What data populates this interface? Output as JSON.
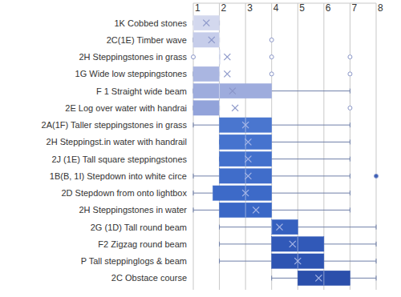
{
  "chart_data": {
    "type": "boxplot",
    "orientation": "horizontal",
    "grid": true,
    "categories": [
      "1K Cobbed stones",
      "2C(1E)  Timber wave",
      "2H  Steppingstones in grass",
      "1G  Wide low steppingstones",
      "F 1 Straight wide beam",
      "2E  Log over water with handrai",
      "2A(1F) Taller steppingstones in grass",
      "2H  Steppingst.in water with handrail",
      "2J (1E)  Tall square steppingstones",
      "1B(B, 1I) Stepdown into white circe",
      "2D  Stepdown from onto lightbox",
      "2H  Steppingstones in water",
      "2G (1D) Tall round beam",
      "F2  Zigzag round beam",
      "P  Tall steppinglogs & beam",
      "2C  Obstace course"
    ],
    "boxes": [
      {
        "min": 1,
        "q1": 1,
        "median": 1,
        "q3": 2,
        "max": 2,
        "mean": 1.5,
        "outliers": []
      },
      {
        "min": 1,
        "q1": 1,
        "median": 2,
        "q3": 2,
        "max": 2,
        "mean": 1.7,
        "outliers": [
          4
        ]
      },
      {
        "min": 2,
        "q1": 2,
        "median": 2,
        "q3": 2,
        "max": 2,
        "mean": 2.3,
        "outliers": [
          1,
          4,
          7
        ]
      },
      {
        "min": 1,
        "q1": 1,
        "median": 2,
        "q3": 2,
        "max": 2,
        "mean": 2.3,
        "outliers": [
          4,
          7
        ]
      },
      {
        "min": 1,
        "q1": 1,
        "median": 2,
        "q3": 4,
        "max": 7,
        "mean": 2.5,
        "outliers": []
      },
      {
        "min": 1,
        "q1": 1,
        "median": 2,
        "q3": 2,
        "max": 2,
        "mean": 2.6,
        "outliers": [
          7
        ]
      },
      {
        "min": 1,
        "q1": 2,
        "median": 3,
        "q3": 4,
        "max": 7,
        "mean": 3.0,
        "outliers": []
      },
      {
        "min": 2,
        "q1": 2,
        "median": 3,
        "q3": 4,
        "max": 7,
        "mean": 3.1,
        "outliers": []
      },
      {
        "min": 2,
        "q1": 2,
        "median": 3,
        "q3": 4,
        "max": 7,
        "mean": 3.1,
        "outliers": []
      },
      {
        "min": 1,
        "q1": 2,
        "median": 3,
        "q3": 4,
        "max": 7,
        "mean": 3.1,
        "outliers": [
          8
        ]
      },
      {
        "min": 1,
        "q1": 1.75,
        "median": 3,
        "q3": 4,
        "max": 7,
        "mean": 3.0,
        "outliers": []
      },
      {
        "min": 1,
        "q1": 2,
        "median": 3,
        "q3": 4,
        "max": 7,
        "mean": 3.4,
        "outliers": []
      },
      {
        "min": 2,
        "q1": 4,
        "median": 4,
        "q3": 5,
        "max": 8,
        "mean": 4.3,
        "outliers": []
      },
      {
        "min": 2,
        "q1": 4,
        "median": 5,
        "q3": 6,
        "max": 8,
        "mean": 4.8,
        "outliers": []
      },
      {
        "min": 2,
        "q1": 4,
        "median": 5,
        "q3": 6,
        "max": 8,
        "mean": 5.0,
        "outliers": []
      },
      {
        "min": 4,
        "q1": 5,
        "median": 6,
        "q3": 7,
        "max": 8,
        "mean": 5.8,
        "outliers": []
      }
    ],
    "colors": [
      "#d3d8ee",
      "#c6cdea",
      "#bcc5e7",
      "#aab6e1",
      "#9eacdd",
      "#92a3da",
      "#4a76cf",
      "#4673ce",
      "#4370cc",
      "#406dca",
      "#3d6ac8",
      "#3a67c6",
      "#3560bf",
      "#3159b8",
      "#2e54b2",
      "#2b4fab"
    ],
    "xlim": [
      1,
      8
    ],
    "xticks": [
      1,
      2,
      3,
      4,
      5,
      6,
      7,
      8
    ]
  }
}
